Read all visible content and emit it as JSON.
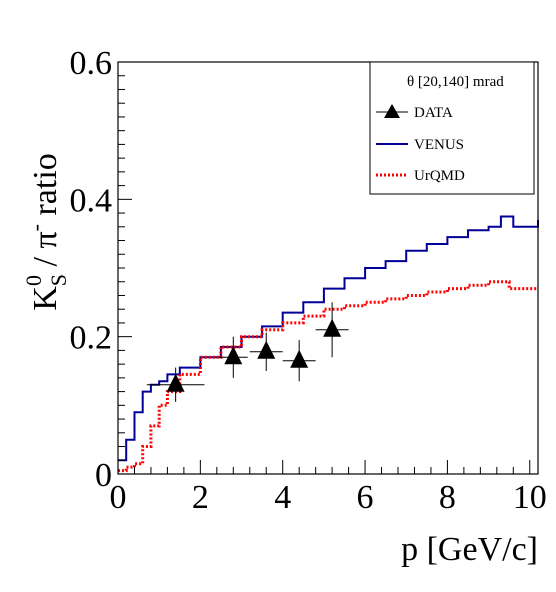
{
  "chart_data": {
    "type": "line",
    "title": "",
    "xlabel": "p [GeV/c]",
    "ylabel": "K_S^0 / π^- ratio",
    "xlim": [
      0,
      10.2
    ],
    "ylim": [
      0,
      0.6
    ],
    "x_ticks": [
      "0",
      "2",
      "4",
      "6",
      "8",
      "10"
    ],
    "y_ticks": [
      "0",
      "0.2",
      "0.4",
      "0.6"
    ],
    "legend": {
      "placement": "top-right",
      "header": "θ [20,140] mrad",
      "entries": [
        "DATA",
        "VENUS",
        "UrQMD"
      ]
    },
    "series": [
      {
        "name": "DATA",
        "style": "markers-with-errors",
        "color": "#000000",
        "points": [
          {
            "x": 1.4,
            "y": 0.13,
            "xerr": 0.7,
            "yerr": 0.025
          },
          {
            "x": 2.8,
            "y": 0.17,
            "xerr": 0.35,
            "yerr": 0.03
          },
          {
            "x": 3.6,
            "y": 0.178,
            "xerr": 0.4,
            "yerr": 0.028
          },
          {
            "x": 4.4,
            "y": 0.165,
            "xerr": 0.4,
            "yerr": 0.03
          },
          {
            "x": 5.2,
            "y": 0.21,
            "xerr": 0.4,
            "yerr": 0.04
          }
        ]
      },
      {
        "name": "VENUS",
        "style": "solid-step",
        "color": "#000099",
        "points": [
          [
            0.0,
            0.02
          ],
          [
            0.2,
            0.05
          ],
          [
            0.4,
            0.09
          ],
          [
            0.6,
            0.12
          ],
          [
            0.8,
            0.13
          ],
          [
            1.0,
            0.135
          ],
          [
            1.2,
            0.145
          ],
          [
            1.5,
            0.155
          ],
          [
            2.0,
            0.17
          ],
          [
            2.5,
            0.185
          ],
          [
            3.0,
            0.2
          ],
          [
            3.5,
            0.215
          ],
          [
            4.0,
            0.235
          ],
          [
            4.5,
            0.25
          ],
          [
            5.0,
            0.27
          ],
          [
            5.5,
            0.285
          ],
          [
            6.0,
            0.3
          ],
          [
            6.5,
            0.31
          ],
          [
            7.0,
            0.325
          ],
          [
            7.5,
            0.335
          ],
          [
            8.0,
            0.345
          ],
          [
            8.5,
            0.355
          ],
          [
            9.0,
            0.36
          ],
          [
            9.3,
            0.375
          ],
          [
            9.6,
            0.36
          ],
          [
            10.2,
            0.37
          ]
        ]
      },
      {
        "name": "UrQMD",
        "style": "dotted-step",
        "color": "#ff0000",
        "points": [
          [
            0.0,
            0.005
          ],
          [
            0.2,
            0.01
          ],
          [
            0.4,
            0.015
          ],
          [
            0.6,
            0.04
          ],
          [
            0.8,
            0.07
          ],
          [
            1.0,
            0.1
          ],
          [
            1.2,
            0.12
          ],
          [
            1.5,
            0.145
          ],
          [
            2.0,
            0.17
          ],
          [
            2.5,
            0.185
          ],
          [
            3.0,
            0.2
          ],
          [
            3.5,
            0.21
          ],
          [
            4.0,
            0.22
          ],
          [
            4.5,
            0.23
          ],
          [
            5.0,
            0.24
          ],
          [
            5.5,
            0.245
          ],
          [
            6.0,
            0.25
          ],
          [
            6.5,
            0.255
          ],
          [
            7.0,
            0.26
          ],
          [
            7.5,
            0.265
          ],
          [
            8.0,
            0.27
          ],
          [
            8.5,
            0.275
          ],
          [
            9.0,
            0.28
          ],
          [
            9.5,
            0.27
          ],
          [
            10.2,
            0.27
          ]
        ]
      }
    ]
  }
}
